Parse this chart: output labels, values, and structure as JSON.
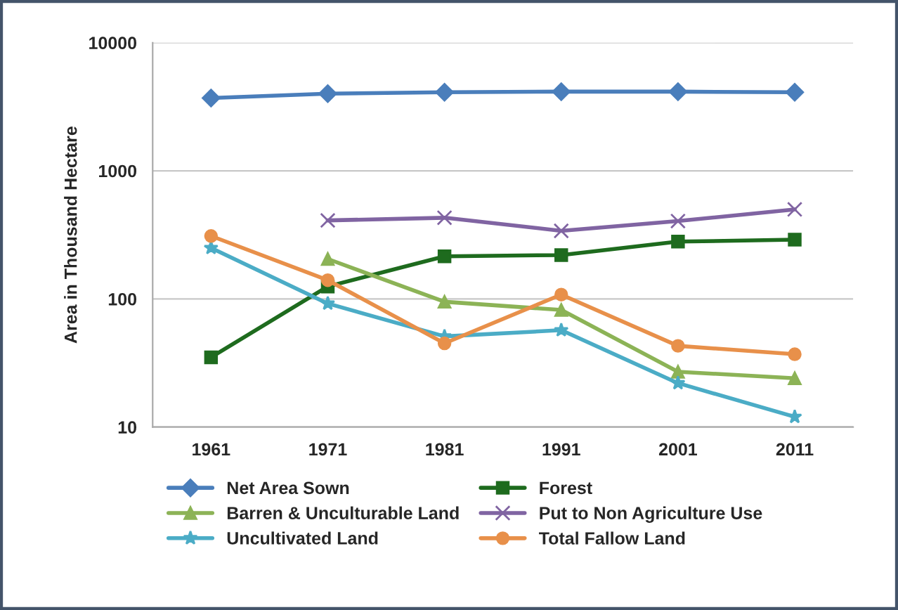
{
  "chart_data": {
    "type": "line",
    "ylabel": "Area in Thousand Hectare",
    "categories": [
      "1961",
      "1971",
      "1981",
      "1991",
      "2001",
      "2011"
    ],
    "log": "y",
    "ylim": [
      10,
      10000
    ],
    "yticks": [
      10,
      100,
      1000,
      10000
    ],
    "grid": "y",
    "legend": "bottom",
    "series": [
      {
        "name": "Net Area Sown",
        "color": "#4a7ebb",
        "marker": "diamond",
        "values": [
          3700,
          4000,
          4100,
          4150,
          4150,
          4100
        ]
      },
      {
        "name": "Forest",
        "color": "#1e6b1e",
        "marker": "square",
        "values": [
          35,
          125,
          215,
          220,
          280,
          290
        ]
      },
      {
        "name": "Barren & Unculturable Land",
        "color": "#8cb356",
        "marker": "triangle",
        "values": [
          null,
          205,
          95,
          82,
          27,
          24
        ]
      },
      {
        "name": "Put to Non Agriculture Use",
        "color": "#8064a2",
        "marker": "cross",
        "values": [
          null,
          410,
          430,
          340,
          405,
          500
        ]
      },
      {
        "name": "Uncultivated Land",
        "color": "#4bacc6",
        "marker": "star",
        "values": [
          250,
          92,
          51,
          57,
          22,
          12
        ]
      },
      {
        "name": "Total Fallow Land",
        "color": "#e8904a",
        "marker": "circle",
        "values": [
          310,
          140,
          45,
          108,
          43,
          37
        ]
      }
    ]
  }
}
